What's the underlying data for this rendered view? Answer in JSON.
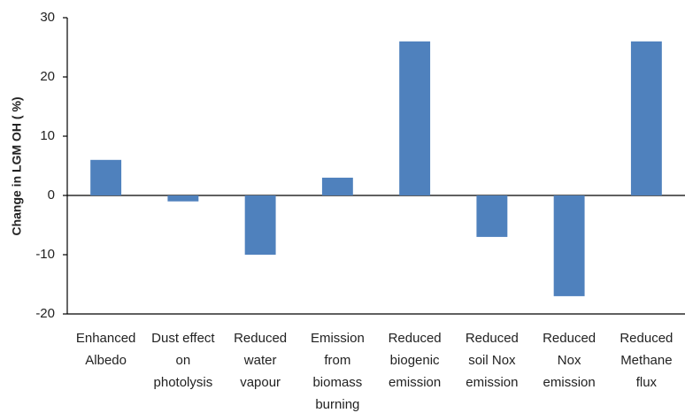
{
  "chart_data": {
    "type": "bar",
    "y_label": "Change in LGM OH ( %)",
    "categories": [
      "Enhanced\nAlbedo",
      "Dust effect\non\nphotolysis",
      "Reduced\nwater\nvapour",
      "Emission\nfrom\nbiomass\nburning",
      "Reduced\nbiogenic\nemission",
      "Reduced\nsoil Nox\nemission",
      "Reduced\nNox\nemission",
      "Reduced\nMethane\nflux"
    ],
    "values": [
      6,
      -1,
      -10,
      3,
      26,
      -7,
      -17,
      26
    ],
    "color": "#4f81bd",
    "ylim": [
      -20,
      30
    ],
    "yticks": [
      -20,
      -10,
      0,
      10,
      20,
      30
    ],
    "grid": false
  }
}
